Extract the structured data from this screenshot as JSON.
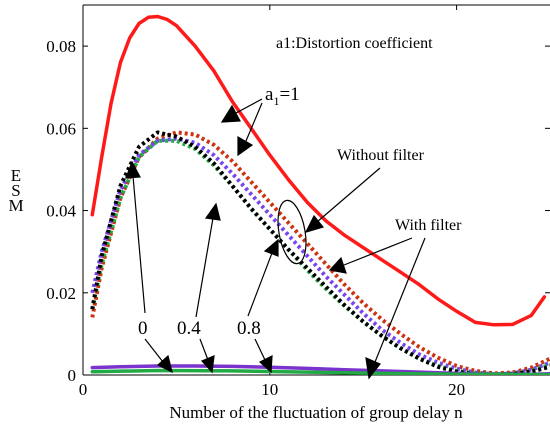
{
  "chart_data": {
    "type": "line",
    "title": "",
    "xlabel": "Number of the fluctuation of group delay n",
    "ylabel": "ESM",
    "xlim": [
      0,
      25
    ],
    "ylim": [
      0,
      0.09
    ],
    "x_ticks": [
      0,
      10,
      20
    ],
    "x_tick_labels": [
      "0",
      "10",
      "20"
    ],
    "y_ticks": [
      0,
      0.02,
      0.04,
      0.06,
      0.08
    ],
    "y_tick_labels": [
      "0",
      "0.02",
      "0.04",
      "0.06",
      "0.08"
    ],
    "grid": false,
    "legend": "none",
    "series": [
      {
        "color": "#ff1a1a",
        "style": "solid",
        "points": [
          [
            0.5,
            0.039
          ],
          [
            1,
            0.053
          ],
          [
            1.5,
            0.066
          ],
          [
            2,
            0.076
          ],
          [
            2.5,
            0.082
          ],
          [
            3,
            0.0855
          ],
          [
            3.5,
            0.087
          ],
          [
            4,
            0.0872
          ],
          [
            4.5,
            0.0865
          ],
          [
            5,
            0.085
          ],
          [
            6,
            0.08
          ],
          [
            7,
            0.074
          ],
          [
            8,
            0.0665
          ],
          [
            9,
            0.06
          ],
          [
            10,
            0.0535
          ],
          [
            11,
            0.0475
          ],
          [
            12,
            0.042
          ],
          [
            13,
            0.0375
          ],
          [
            14,
            0.034
          ],
          [
            15,
            0.031
          ],
          [
            16,
            0.028
          ],
          [
            17,
            0.025
          ],
          [
            18,
            0.022
          ],
          [
            19,
            0.0185
          ],
          [
            20,
            0.0155
          ],
          [
            21,
            0.0128
          ],
          [
            22,
            0.0122
          ],
          [
            23,
            0.0123
          ],
          [
            24,
            0.0145
          ],
          [
            24.7,
            0.019
          ]
        ]
      },
      {
        "color": "#cc3311",
        "style": "dotted",
        "points": [
          [
            0.5,
            0.014
          ],
          [
            1,
            0.026
          ],
          [
            2,
            0.043
          ],
          [
            3,
            0.053
          ],
          [
            4,
            0.0575
          ],
          [
            5,
            0.059
          ],
          [
            6,
            0.0585
          ],
          [
            7,
            0.056
          ],
          [
            8,
            0.052
          ],
          [
            9,
            0.047
          ],
          [
            10,
            0.042
          ],
          [
            11,
            0.037
          ],
          [
            12,
            0.032
          ],
          [
            13,
            0.027
          ],
          [
            14,
            0.022
          ],
          [
            15,
            0.0175
          ],
          [
            16,
            0.0135
          ],
          [
            17,
            0.01
          ],
          [
            18,
            0.0068
          ],
          [
            19,
            0.0042
          ],
          [
            20,
            0.0022
          ],
          [
            21,
            0.001
          ],
          [
            22,
            0.0004
          ],
          [
            23,
            0.0006
          ],
          [
            24,
            0.0018
          ],
          [
            25,
            0.004
          ]
        ]
      },
      {
        "color": "#7744ee",
        "style": "dotted",
        "points": [
          [
            0.5,
            0.02
          ],
          [
            1,
            0.03
          ],
          [
            2,
            0.045
          ],
          [
            3,
            0.0535
          ],
          [
            4,
            0.057
          ],
          [
            5,
            0.0575
          ],
          [
            6,
            0.0565
          ],
          [
            7,
            0.0535
          ],
          [
            8,
            0.049
          ],
          [
            9,
            0.044
          ],
          [
            10,
            0.039
          ],
          [
            11,
            0.034
          ],
          [
            12,
            0.029
          ],
          [
            13,
            0.024
          ],
          [
            14,
            0.0195
          ],
          [
            15,
            0.015
          ],
          [
            16,
            0.011
          ],
          [
            17,
            0.0078
          ],
          [
            18,
            0.005
          ],
          [
            19,
            0.003
          ],
          [
            20,
            0.0015
          ],
          [
            21,
            0.0006
          ],
          [
            22,
            0.0002
          ],
          [
            23,
            0.0004
          ],
          [
            24,
            0.0013
          ],
          [
            25,
            0.003
          ]
        ]
      },
      {
        "color": "#22aa44",
        "style": "dotted",
        "points": [
          [
            0.5,
            0.016
          ],
          [
            1,
            0.027
          ],
          [
            2,
            0.043
          ],
          [
            3,
            0.053
          ],
          [
            4,
            0.057
          ],
          [
            5,
            0.057
          ],
          [
            6,
            0.055
          ],
          [
            7,
            0.051
          ],
          [
            8,
            0.046
          ],
          [
            9,
            0.0405
          ],
          [
            10,
            0.0355
          ],
          [
            11,
            0.0305
          ],
          [
            12,
            0.0255
          ],
          [
            13,
            0.021
          ],
          [
            14,
            0.0168
          ],
          [
            15,
            0.013
          ],
          [
            16,
            0.0095
          ],
          [
            17,
            0.0065
          ],
          [
            18,
            0.004
          ],
          [
            19,
            0.0022
          ],
          [
            20,
            0.001
          ],
          [
            21,
            0.0004
          ],
          [
            22,
            0.0002
          ],
          [
            23,
            0.0003
          ],
          [
            24,
            0.001
          ],
          [
            25,
            0.0025
          ]
        ]
      },
      {
        "color": "#000000",
        "style": "dotted",
        "points": [
          [
            0.5,
            0.016
          ],
          [
            1,
            0.029
          ],
          [
            2,
            0.046
          ],
          [
            3,
            0.0555
          ],
          [
            4,
            0.059
          ],
          [
            5,
            0.058
          ],
          [
            6,
            0.0555
          ],
          [
            7,
            0.0515
          ],
          [
            8,
            0.046
          ],
          [
            9,
            0.0405
          ],
          [
            10,
            0.0355
          ],
          [
            11,
            0.0305
          ],
          [
            12,
            0.026
          ],
          [
            13,
            0.0215
          ],
          [
            14,
            0.017
          ],
          [
            15,
            0.013
          ],
          [
            16,
            0.0095
          ],
          [
            17,
            0.0065
          ],
          [
            18,
            0.004
          ],
          [
            19,
            0.002
          ],
          [
            20,
            0.0008
          ],
          [
            21,
            0.0002
          ],
          [
            22,
            0.0001
          ],
          [
            23,
            0.0002
          ],
          [
            24,
            0.0008
          ],
          [
            25,
            0.002
          ]
        ]
      },
      {
        "color": "#7a33cc",
        "style": "solid",
        "points": [
          [
            0.5,
            0.0018
          ],
          [
            2,
            0.002
          ],
          [
            4,
            0.0022
          ],
          [
            6,
            0.0022
          ],
          [
            8,
            0.0021
          ],
          [
            10,
            0.0019
          ],
          [
            12,
            0.0016
          ],
          [
            14,
            0.0013
          ],
          [
            16,
            0.001
          ],
          [
            18,
            0.0007
          ],
          [
            20,
            0.0004
          ],
          [
            22,
            0.0002
          ],
          [
            24,
            0.0002
          ],
          [
            25,
            0.0003
          ]
        ]
      },
      {
        "color": "#22aa44",
        "style": "solid",
        "points": [
          [
            0.5,
            0.0008
          ],
          [
            4,
            0.0011
          ],
          [
            8,
            0.001
          ],
          [
            12,
            0.0007
          ],
          [
            16,
            0.0004
          ],
          [
            20,
            0.0002
          ],
          [
            25,
            0.0001
          ]
        ]
      }
    ],
    "annotations": {
      "title_text": "a1:Distortion coefficient",
      "a1_prefix": "a",
      "a1_sub": "1",
      "a1_suffix": "=1",
      "without_filter": "Without filter",
      "with_filter": "With filter",
      "label_0": "0",
      "label_04": "0.4",
      "label_08": "0.8"
    }
  }
}
